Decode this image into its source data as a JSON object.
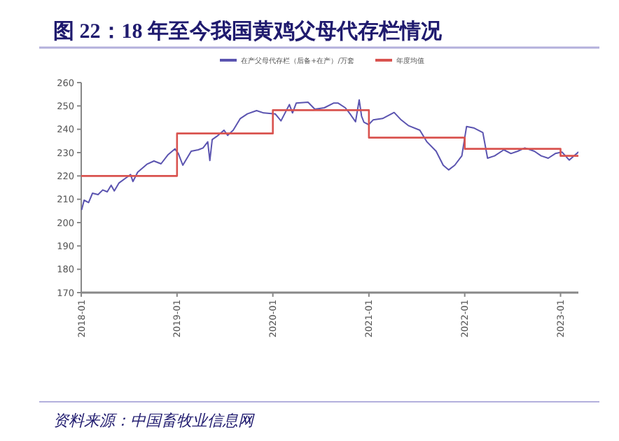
{
  "chart_data": {
    "type": "line",
    "title": "图 22：18 年至今我国黄鸡父母代存栏情况",
    "annotations": [
      "资料来源：中国畜牧业信息网"
    ],
    "xlim": [
      "2018-01-01",
      "2023-03-10"
    ],
    "ylim": [
      170,
      260
    ],
    "yticks": [
      170,
      180,
      190,
      200,
      210,
      220,
      230,
      240,
      250,
      260
    ],
    "xticks": [
      {
        "value": "2018-01-01",
        "label": "2018-01"
      },
      {
        "value": "2019-01-01",
        "label": "2019-01"
      },
      {
        "value": "2020-01-01",
        "label": "2020-01"
      },
      {
        "value": "2021-01-01",
        "label": "2021-01"
      },
      {
        "value": "2022-01-01",
        "label": "2022-01"
      },
      {
        "value": "2023-01-01",
        "label": "2023-01"
      }
    ],
    "grid": false,
    "legend": "top",
    "series": [
      {
        "name": "在产父母代存栏（后备+在产）/万套",
        "color": "#5b54b0",
        "type": "line",
        "x": [
          "2018-01-03",
          "2018-01-12",
          "2018-01-29",
          "2018-02-13",
          "2018-03-06",
          "2018-03-24",
          "2018-04-10",
          "2018-04-25",
          "2018-05-07",
          "2018-05-25",
          "2018-06-21",
          "2018-07-08",
          "2018-07-17",
          "2018-08-04",
          "2018-09-08",
          "2018-10-05",
          "2018-11-01",
          "2018-11-27",
          "2018-12-24",
          "2019-01-06",
          "2019-01-23",
          "2019-02-24",
          "2019-03-23",
          "2019-04-10",
          "2019-04-28",
          "2019-05-06",
          "2019-05-15",
          "2019-06-02",
          "2019-06-29",
          "2019-07-13",
          "2019-08-03",
          "2019-08-30",
          "2019-09-26",
          "2019-10-31",
          "2019-11-27",
          "2020-01-10",
          "2020-02-01",
          "2020-03-04",
          "2020-03-16",
          "2020-03-30",
          "2020-05-14",
          "2020-06-09",
          "2020-07-15",
          "2020-08-19",
          "2020-09-06",
          "2020-10-03",
          "2020-10-21",
          "2020-11-11",
          "2020-11-25",
          "2020-12-04",
          "2020-12-13",
          "2020-12-31",
          "2021-01-17",
          "2021-02-22",
          "2021-04-07",
          "2021-05-04",
          "2021-05-31",
          "2021-07-14",
          "2021-08-10",
          "2021-09-14",
          "2021-10-11",
          "2021-11-01",
          "2021-11-24",
          "2021-12-21",
          "2022-01-08",
          "2022-02-04",
          "2022-03-11",
          "2022-03-29",
          "2022-04-25",
          "2022-05-30",
          "2022-06-26",
          "2022-07-22",
          "2022-08-18",
          "2022-09-23",
          "2022-10-19",
          "2022-11-15",
          "2022-12-12",
          "2023-01-07",
          "2023-02-03",
          "2023-02-21",
          "2023-03-10"
        ],
        "values": [
          205.6,
          209.6,
          208.6,
          212.6,
          212,
          214,
          213.2,
          216,
          213.6,
          217,
          219.2,
          220.6,
          217.6,
          221.6,
          225,
          226.4,
          225.2,
          229,
          231.6,
          229.6,
          224.6,
          230.6,
          231.2,
          232,
          234.6,
          226.6,
          235.6,
          237,
          239.6,
          237.4,
          239.6,
          244.6,
          246.6,
          248,
          247,
          246.6,
          243.6,
          250.6,
          247,
          251.2,
          251.6,
          248.6,
          249.2,
          251.2,
          251.2,
          249.2,
          246.6,
          243.2,
          252.6,
          245.6,
          243,
          242,
          244,
          244.6,
          247.2,
          244,
          241.6,
          239.6,
          234.6,
          230.6,
          224.6,
          222.6,
          224.6,
          228.6,
          241.2,
          240.6,
          238.6,
          227.6,
          228.6,
          231.2,
          229.6,
          230.6,
          232,
          230.6,
          228.6,
          227.6,
          229.6,
          230.2,
          226.8,
          228.6,
          230.2
        ]
      },
      {
        "name": "年度均值",
        "color": "#d9534f",
        "type": "step",
        "x": [
          "2018-01-01",
          "2019-01-01",
          "2020-01-01",
          "2021-01-01",
          "2022-01-01",
          "2023-01-01",
          "2023-03-10"
        ],
        "values": [
          220,
          238.2,
          248.2,
          236.4,
          231.6,
          228.6,
          228.6
        ]
      }
    ]
  }
}
